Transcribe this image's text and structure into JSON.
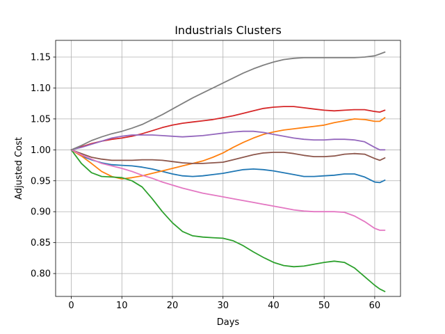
{
  "chart_data": {
    "type": "line",
    "title": "Industrials Clusters",
    "xlabel": "Days",
    "ylabel": "Adjusted Cost",
    "xlim": [
      -3.1,
      65.1
    ],
    "ylim": [
      0.763,
      1.177
    ],
    "xticks": [
      0,
      10,
      20,
      30,
      40,
      50,
      60
    ],
    "yticks": [
      0.8,
      0.85,
      0.9,
      0.95,
      1.0,
      1.05,
      1.1,
      1.15
    ],
    "xtick_labels": [
      "0",
      "10",
      "20",
      "30",
      "40",
      "50",
      "60"
    ],
    "ytick_labels": [
      "0.80",
      "0.85",
      "0.90",
      "0.95",
      "1.00",
      "1.05",
      "1.10",
      "1.15"
    ],
    "grid": true,
    "x": [
      0,
      2,
      4,
      6,
      8,
      10,
      12,
      14,
      16,
      18,
      20,
      22,
      24,
      26,
      28,
      30,
      32,
      34,
      36,
      38,
      40,
      42,
      44,
      46,
      48,
      50,
      52,
      54,
      56,
      58,
      60,
      61,
      62
    ],
    "series": [
      {
        "color": "#1f77b4",
        "values": [
          1.0,
          0.99,
          0.984,
          0.979,
          0.976,
          0.975,
          0.974,
          0.972,
          0.969,
          0.965,
          0.961,
          0.958,
          0.957,
          0.958,
          0.96,
          0.962,
          0.965,
          0.968,
          0.969,
          0.968,
          0.966,
          0.963,
          0.96,
          0.957,
          0.957,
          0.958,
          0.959,
          0.961,
          0.961,
          0.956,
          0.948,
          0.947,
          0.951
        ]
      },
      {
        "color": "#ff7f0e",
        "values": [
          1.0,
          0.99,
          0.978,
          0.965,
          0.957,
          0.953,
          0.955,
          0.958,
          0.962,
          0.966,
          0.97,
          0.974,
          0.978,
          0.982,
          0.988,
          0.995,
          1.004,
          1.012,
          1.019,
          1.025,
          1.029,
          1.032,
          1.034,
          1.036,
          1.038,
          1.04,
          1.044,
          1.047,
          1.05,
          1.049,
          1.046,
          1.046,
          1.052
        ]
      },
      {
        "color": "#2ca02c",
        "values": [
          1.0,
          0.978,
          0.963,
          0.957,
          0.956,
          0.955,
          0.95,
          0.94,
          0.921,
          0.9,
          0.882,
          0.868,
          0.861,
          0.859,
          0.858,
          0.857,
          0.853,
          0.845,
          0.835,
          0.826,
          0.818,
          0.813,
          0.811,
          0.812,
          0.815,
          0.818,
          0.82,
          0.818,
          0.809,
          0.795,
          0.781,
          0.775,
          0.771
        ]
      },
      {
        "color": "#d62728",
        "values": [
          1.0,
          1.005,
          1.01,
          1.014,
          1.017,
          1.019,
          1.022,
          1.026,
          1.031,
          1.036,
          1.04,
          1.043,
          1.045,
          1.047,
          1.049,
          1.052,
          1.055,
          1.059,
          1.063,
          1.067,
          1.069,
          1.07,
          1.07,
          1.068,
          1.066,
          1.064,
          1.063,
          1.064,
          1.065,
          1.065,
          1.062,
          1.061,
          1.064
        ]
      },
      {
        "color": "#9467bd",
        "values": [
          1.0,
          1.004,
          1.009,
          1.014,
          1.019,
          1.022,
          1.024,
          1.024,
          1.024,
          1.023,
          1.022,
          1.021,
          1.022,
          1.023,
          1.025,
          1.027,
          1.029,
          1.03,
          1.03,
          1.028,
          1.025,
          1.022,
          1.019,
          1.017,
          1.016,
          1.016,
          1.017,
          1.017,
          1.016,
          1.013,
          1.004,
          1.0,
          1.0
        ]
      },
      {
        "color": "#8c564b",
        "values": [
          1.0,
          0.994,
          0.988,
          0.985,
          0.983,
          0.983,
          0.983,
          0.984,
          0.984,
          0.983,
          0.981,
          0.979,
          0.978,
          0.978,
          0.979,
          0.98,
          0.984,
          0.988,
          0.992,
          0.995,
          0.996,
          0.996,
          0.994,
          0.991,
          0.989,
          0.989,
          0.99,
          0.993,
          0.994,
          0.993,
          0.986,
          0.983,
          0.987
        ]
      },
      {
        "color": "#e377c2",
        "values": [
          1.0,
          0.992,
          0.985,
          0.978,
          0.974,
          0.97,
          0.965,
          0.959,
          0.954,
          0.948,
          0.943,
          0.938,
          0.934,
          0.93,
          0.927,
          0.924,
          0.921,
          0.918,
          0.915,
          0.912,
          0.909,
          0.906,
          0.903,
          0.901,
          0.9,
          0.9,
          0.9,
          0.899,
          0.893,
          0.884,
          0.873,
          0.87,
          0.87
        ]
      },
      {
        "color": "#7f7f7f",
        "values": [
          1.0,
          1.007,
          1.015,
          1.021,
          1.026,
          1.03,
          1.035,
          1.041,
          1.049,
          1.057,
          1.066,
          1.075,
          1.084,
          1.092,
          1.1,
          1.108,
          1.116,
          1.124,
          1.131,
          1.137,
          1.142,
          1.146,
          1.148,
          1.149,
          1.149,
          1.149,
          1.149,
          1.149,
          1.149,
          1.15,
          1.152,
          1.155,
          1.158
        ]
      }
    ]
  }
}
